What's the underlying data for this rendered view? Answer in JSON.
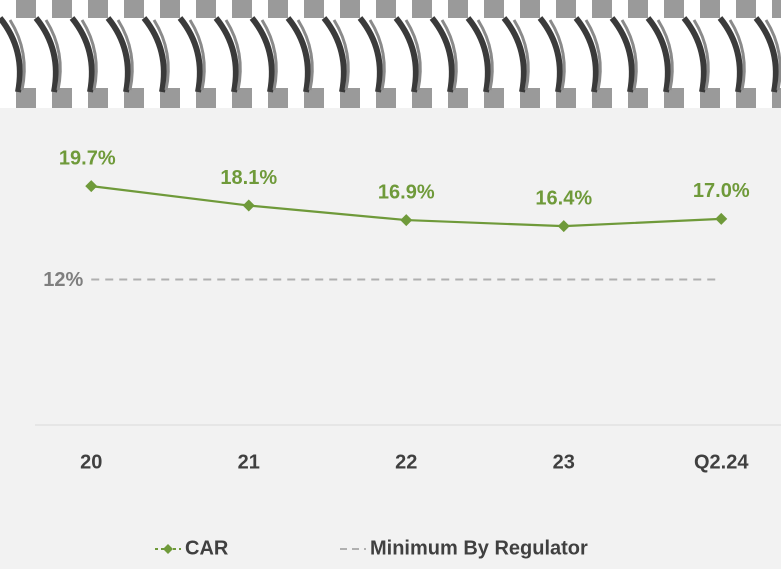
{
  "chart_data": {
    "type": "line",
    "categories": [
      "20",
      "21",
      "22",
      "23",
      "Q2.24"
    ],
    "series": [
      {
        "name": "CAR",
        "color": "#6f9a3a",
        "values": [
          19.7,
          18.1,
          16.9,
          16.4,
          17.0
        ],
        "value_labels": [
          "19.7%",
          "18.1%",
          "16.9%",
          "16.4%",
          "17.0%"
        ]
      },
      {
        "name": "Minimum By Regulator",
        "color": "#b0b0b0",
        "values": [
          12,
          12,
          12,
          12,
          12
        ],
        "value_labels": [
          "12%",
          null,
          null,
          null,
          null
        ],
        "dashed": true
      }
    ],
    "ylim": [
      0,
      24
    ],
    "legend": "bottom"
  }
}
